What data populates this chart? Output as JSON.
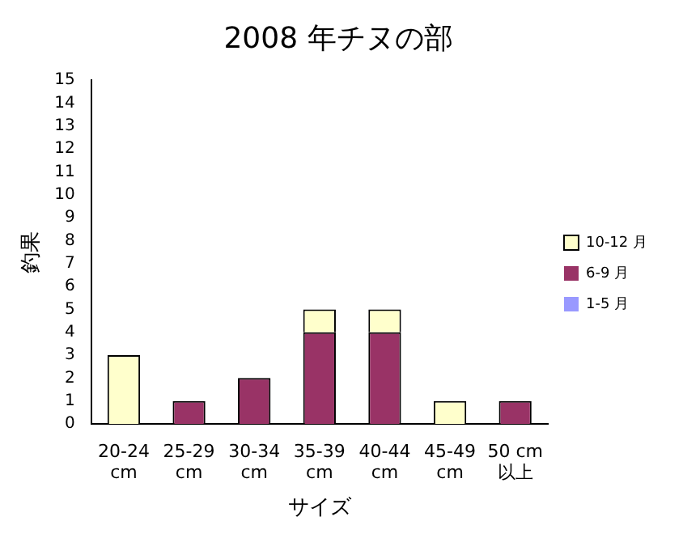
{
  "chart_data": {
    "type": "bar",
    "title": "2008 年チヌの部",
    "xlabel": "サイズ",
    "ylabel": "釣果",
    "categories": [
      "20-24 cm",
      "25-29 cm",
      "30-34 cm",
      "35-39 cm",
      "40-44 cm",
      "45-49 cm",
      "50 cm 以上"
    ],
    "stacked": true,
    "ylim": [
      0,
      15
    ],
    "yticks": [
      0,
      1,
      2,
      3,
      4,
      5,
      6,
      7,
      8,
      9,
      10,
      11,
      12,
      13,
      14,
      15
    ],
    "grid": false,
    "legend": "right",
    "series": [
      {
        "name": "1-5 月",
        "color": "#9999ff",
        "values": [
          0,
          0,
          0,
          0,
          0,
          0,
          0
        ]
      },
      {
        "name": "6-9 月",
        "color": "#993366",
        "values": [
          0,
          1,
          2,
          4,
          4,
          0,
          1
        ]
      },
      {
        "name": "10-12 月",
        "color": "#ffffcc",
        "values": [
          3,
          0,
          0,
          1,
          1,
          1,
          0
        ]
      }
    ]
  }
}
